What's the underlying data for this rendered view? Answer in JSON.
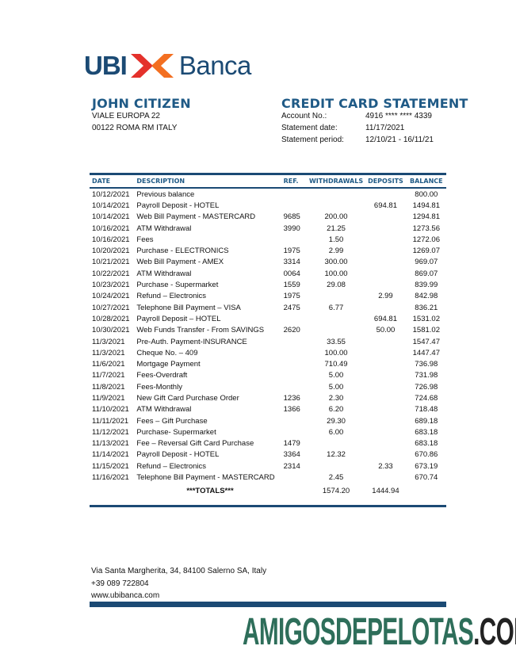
{
  "logo": {
    "left": "UBI",
    "right": "Banca",
    "colors": {
      "blue": "#1b4a74",
      "orange": "#f36f21",
      "red": "#e4312b"
    }
  },
  "customer": {
    "name": "JOHN CITIZEN",
    "address1": "VIALE EUROPA 22",
    "address2": "00122 ROMA RM ITALY"
  },
  "statement": {
    "title": "CREDIT CARD STATEMENT",
    "account_label": "Account No.:",
    "account_value": "4916 **** **** 4339",
    "date_label": "Statement date:",
    "date_value": "11/17/2021",
    "period_label": "Statement period:",
    "period_value": "12/10/21 - 16/11/21"
  },
  "table": {
    "headers": [
      "DATE",
      "DESCRIPTION",
      "REF.",
      "WITHDRAWALS",
      "DEPOSITS",
      "BALANCE"
    ],
    "rows": [
      [
        "10/12/2021",
        "Previous balance",
        "",
        "",
        "",
        "800.00"
      ],
      [
        "10/14/2021",
        "Payroll Deposit - HOTEL",
        "",
        "",
        "694.81",
        "1494.81"
      ],
      [
        "10/14/2021",
        "Web Bill Payment  - MASTERCARD",
        "9685",
        "200.00",
        "",
        "1294.81"
      ],
      [
        "10/16/2021",
        "ATM Withdrawal",
        "3990",
        "21.25",
        "",
        "1273.56"
      ],
      [
        "10/16/2021",
        "Fees",
        "",
        "1.50",
        "",
        "1272.06"
      ],
      [
        "10/20/2021",
        "Purchase  - ELECTRONICS",
        "1975",
        "2.99",
        "",
        "1269.07"
      ],
      [
        "10/21/2021",
        "Web Bill Payment - AMEX",
        "3314",
        "300.00",
        "",
        "969.07"
      ],
      [
        "10/22/2021",
        "ATM Withdrawal",
        "0064",
        "100.00",
        "",
        "869.07"
      ],
      [
        "10/23/2021",
        "Purchase - Supermarket",
        "1559",
        "29.08",
        "",
        "839.99"
      ],
      [
        "10/24/2021",
        "Refund – Electronics",
        "1975",
        "",
        "2.99",
        "842.98"
      ],
      [
        "10/27/2021",
        "Telephone Bill Payment – VISA",
        "2475",
        "6.77",
        "",
        "836.21"
      ],
      [
        "10/28/2021",
        "Payroll Deposit – HOTEL",
        "",
        "",
        "694.81",
        "1531.02"
      ],
      [
        "10/30/2021",
        "Web Funds Transfer - From SAVINGS",
        "2620",
        "",
        "50.00",
        "1581.02"
      ],
      [
        "11/3/2021",
        "Pre-Auth. Payment-INSURANCE",
        "",
        "33.55",
        "",
        "1547.47"
      ],
      [
        "11/3/2021",
        "Cheque No. – 409",
        "",
        "100.00",
        "",
        "1447.47"
      ],
      [
        "11/6/2021",
        "Mortgage Payment",
        "",
        "710.49",
        "",
        "736.98"
      ],
      [
        "11/7/2021",
        "Fees-Overdraft",
        "",
        "5.00",
        "",
        "731.98"
      ],
      [
        "11/8/2021",
        "Fees-Monthly",
        "",
        "5.00",
        "",
        "726.98"
      ],
      [
        "11/9/2021",
        "New Gift Card Purchase Order",
        "1236",
        "2.30",
        "",
        "724.68"
      ],
      [
        "11/10/2021",
        "ATM Withdrawal",
        "1366",
        "6.20",
        "",
        "718.48"
      ],
      [
        "11/11/2021",
        "Fees – Gift Purchase",
        "",
        "29.30",
        "",
        "689.18"
      ],
      [
        "11/12/2021",
        "Purchase- Supermarket",
        "",
        "6.00",
        "",
        "683.18"
      ],
      [
        "11/13/2021",
        "Fee – Reversal Gift Card Purchase",
        "1479",
        "",
        "",
        "683.18"
      ],
      [
        "11/14/2021",
        "Payroll Deposit - HOTEL",
        "3364",
        "12.32",
        "",
        "670.86"
      ],
      [
        "11/15/2021",
        "Refund – Electronics",
        "2314",
        "",
        "2.33",
        "673.19"
      ],
      [
        "11/16/2021",
        "Telephone Bill Payment - MASTERCARD",
        "",
        "2.45",
        "",
        "670.74"
      ]
    ],
    "totals": {
      "label": "***TOTALS***",
      "withdrawals": "1574.20",
      "deposits": "1444.94"
    }
  },
  "footer": {
    "address": "Via Santa Margherita, 34, 84100 Salerno SA, Italy",
    "phone": "+39 089 722804",
    "website": "www.ubibanca.com"
  },
  "watermark": {
    "main": "AMIGOSDEPELOTAS",
    "suffix": ".COM",
    "colors": {
      "main": "#2e6e5a",
      "suffix": "#222222"
    }
  }
}
